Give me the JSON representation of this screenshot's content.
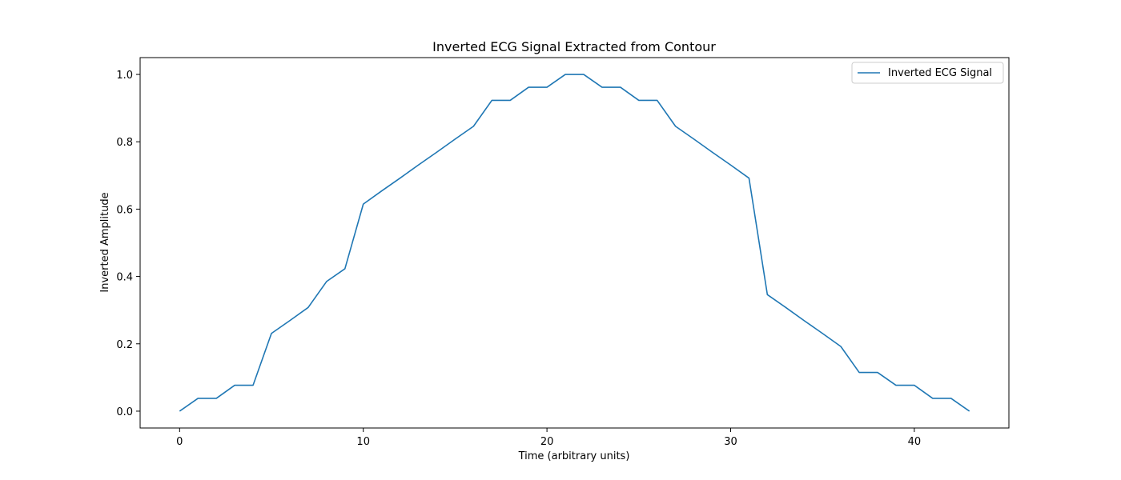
{
  "chart_data": {
    "type": "line",
    "title": "Inverted ECG Signal Extracted from Contour",
    "xlabel": "Time (arbitrary units)",
    "ylabel": "Inverted Amplitude",
    "xlim": [
      -2.15,
      45.15
    ],
    "ylim": [
      -0.05,
      1.05
    ],
    "xticks": [
      0,
      10,
      20,
      30,
      40
    ],
    "yticks": [
      0.0,
      0.2,
      0.4,
      0.6,
      0.8,
      1.0
    ],
    "xtick_labels": [
      "0",
      "10",
      "20",
      "30",
      "40"
    ],
    "ytick_labels": [
      "0.0",
      "0.2",
      "0.4",
      "0.6",
      "0.8",
      "1.0"
    ],
    "grid": false,
    "legend_position": "top-right",
    "series": [
      {
        "name": "Inverted ECG Signal",
        "color": "#1f77b4",
        "x": [
          0,
          1,
          2,
          3,
          4,
          5,
          6,
          7,
          8,
          9,
          10,
          11,
          12,
          13,
          14,
          15,
          16,
          17,
          18,
          19,
          20,
          21,
          22,
          23,
          24,
          25,
          26,
          27,
          28,
          29,
          30,
          31,
          32,
          33,
          34,
          35,
          36,
          37,
          38,
          39,
          40,
          41,
          42,
          43
        ],
        "y": [
          0.0,
          0.038,
          0.038,
          0.077,
          0.077,
          0.231,
          0.269,
          0.308,
          0.385,
          0.423,
          0.615,
          0.654,
          0.692,
          0.731,
          0.769,
          0.808,
          0.846,
          0.923,
          0.923,
          0.962,
          0.962,
          1.0,
          1.0,
          0.962,
          0.962,
          0.923,
          0.923,
          0.846,
          0.808,
          0.769,
          0.731,
          0.692,
          0.346,
          0.308,
          0.269,
          0.231,
          0.192,
          0.115,
          0.115,
          0.077,
          0.077,
          0.038,
          0.038,
          0.0
        ]
      }
    ]
  }
}
